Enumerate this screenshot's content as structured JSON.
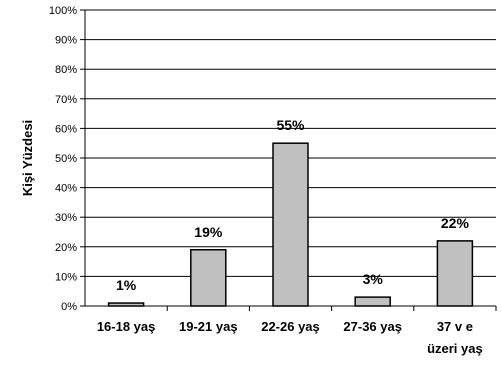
{
  "chart_data": {
    "type": "bar",
    "title": "",
    "xlabel": "",
    "ylabel": "Kişi Yüzdesi",
    "categories": [
      "16-18 yaş",
      "19-21 yaş",
      "22-26 yaş",
      "27-36 yaş",
      "37 ve üzeri yaş"
    ],
    "category_lines": [
      [
        "16-18 yaş"
      ],
      [
        "19-21 yaş"
      ],
      [
        "22-26 yaş"
      ],
      [
        "27-36 yaş"
      ],
      [
        "37 v e",
        "üzeri yaş"
      ]
    ],
    "values": [
      1,
      19,
      55,
      3,
      22
    ],
    "data_labels": [
      "1%",
      "19%",
      "55%",
      "3%",
      "22%"
    ],
    "y_ticks": [
      "0%",
      "10%",
      "20%",
      "30%",
      "40%",
      "50%",
      "60%",
      "70%",
      "80%",
      "90%",
      "100%"
    ],
    "ylim": [
      0,
      100
    ],
    "grid": true,
    "legend": "none",
    "colors": {
      "bar_fill": "#c0c0c0",
      "bar_stroke": "#000000",
      "grid": "#000000"
    }
  }
}
